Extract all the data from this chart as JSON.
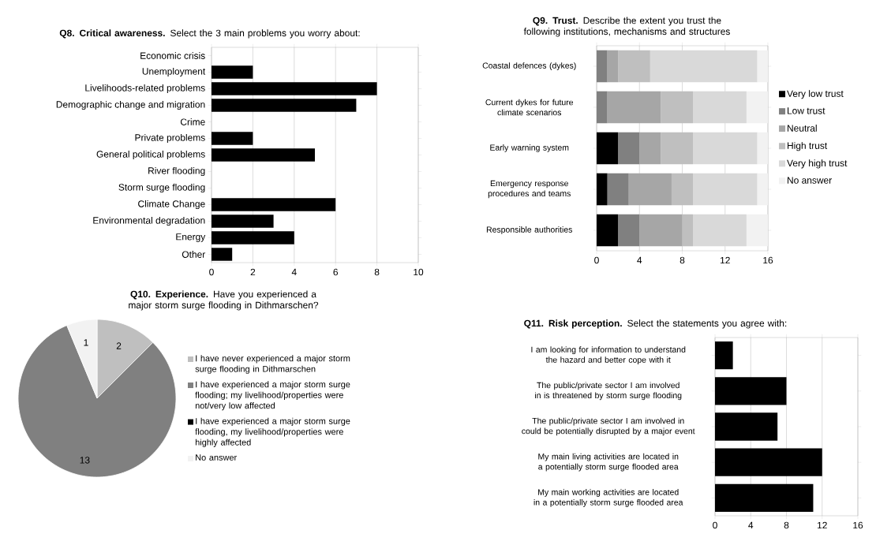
{
  "chart_data": [
    {
      "type": "bar",
      "orientation": "horizontal",
      "title": "**Q8. Critical awareness.** Select the 3 main problems you worry about:",
      "categories": [
        "Economic crisis",
        "Unemployment",
        "Livelihoods-related problems",
        "Demographic change and migration",
        "Crime",
        "Private problems",
        "General political problems",
        "River flooding",
        "Storm surge flooding",
        "Climate Change",
        "Environmental degradation",
        "Energy",
        "Other"
      ],
      "values": [
        0,
        2,
        8,
        7,
        0,
        2,
        5,
        0,
        0,
        6,
        3,
        4,
        1
      ],
      "color": "#000000",
      "xlim": [
        0,
        10
      ],
      "xticks": [
        0,
        2,
        4,
        6,
        8,
        10
      ],
      "grid": "x"
    },
    {
      "type": "bar",
      "orientation": "horizontal",
      "stacked": true,
      "title": "**Q9. Trust.** Describe the extent you trust the following institutions, mechanisms and structures",
      "categories": [
        "Coastal defences (dykes)",
        "Current dykes for future climate scenarios",
        "Early warning system",
        "Emergency response procedures and teams",
        "Responsible authorities"
      ],
      "series": [
        {
          "name": "Very low trust",
          "color": "#000000",
          "values": [
            0,
            0,
            2,
            1,
            2
          ]
        },
        {
          "name": "Low trust",
          "color": "#808080",
          "values": [
            1,
            1,
            2,
            2,
            2
          ]
        },
        {
          "name": "Neutral",
          "color": "#a6a6a6",
          "values": [
            1,
            5,
            2,
            4,
            4
          ]
        },
        {
          "name": "High trust",
          "color": "#bfbfbf",
          "values": [
            3,
            3,
            3,
            2,
            1
          ]
        },
        {
          "name": "Very high trust",
          "color": "#d9d9d9",
          "values": [
            10,
            5,
            6,
            6,
            5
          ]
        },
        {
          "name": "No answer",
          "color": "#f2f2f2",
          "values": [
            1,
            2,
            1,
            1,
            2
          ]
        }
      ],
      "xlim": [
        0,
        16
      ],
      "xticks": [
        0,
        4,
        8,
        12,
        16
      ],
      "grid": "x",
      "legend": "right"
    },
    {
      "type": "pie",
      "title": "**Q10. Experience.** Have you experienced a major storm surge flooding in Dithmarschen?",
      "categories": [
        "I have never experienced a major storm surge flooding in Dithmarschen",
        "I have experienced a major storm surge flooding; my livelihood/properties were not/very low affected",
        "I have experienced a major storm surge flooding, my livelihood/properties were highly affected",
        "No answer"
      ],
      "values": [
        2,
        13,
        0,
        1
      ],
      "value_labels": [
        "2",
        "13",
        null,
        "1"
      ],
      "colors": [
        "#bfbfbf",
        "#808080",
        "#000000",
        "#f2f2f2"
      ],
      "legend": "right"
    },
    {
      "type": "bar",
      "orientation": "horizontal",
      "title": "**Q11. Risk perception.** Select the statements you agree with:",
      "categories": [
        "I am looking for information to understand the hazard and better cope with it",
        "The public/private sector I am involved in is threatened by storm surge flooding",
        "The public/private sector I am involved in could be potentially disrupted by a major event",
        "My main living activities are located in a potentially storm surge flooded area",
        "My main working activities are located in a potentially storm surge flooded area"
      ],
      "values": [
        2,
        8,
        7,
        12,
        11
      ],
      "color": "#000000",
      "xlim": [
        0,
        16
      ],
      "xticks": [
        0,
        4,
        8,
        12,
        16
      ],
      "grid": "x"
    }
  ]
}
